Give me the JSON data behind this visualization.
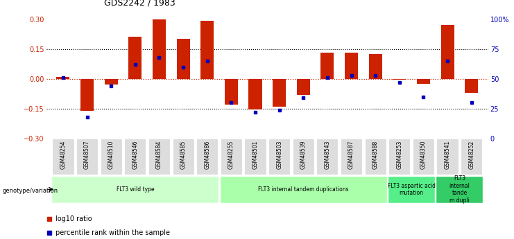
{
  "title": "GDS2242 / 1983",
  "samples": [
    "GSM48254",
    "GSM48507",
    "GSM48510",
    "GSM48546",
    "GSM48584",
    "GSM48585",
    "GSM48586",
    "GSM48255",
    "GSM48501",
    "GSM48503",
    "GSM48539",
    "GSM48543",
    "GSM48587",
    "GSM48588",
    "GSM48253",
    "GSM48350",
    "GSM48541",
    "GSM48252"
  ],
  "log10_ratio": [
    0.01,
    -0.16,
    -0.03,
    0.21,
    0.3,
    0.2,
    0.29,
    -0.13,
    -0.155,
    -0.14,
    -0.08,
    0.13,
    0.13,
    0.125,
    -0.005,
    -0.025,
    0.27,
    -0.07
  ],
  "percentile_rank": [
    51,
    18,
    44,
    62,
    68,
    60,
    65,
    30,
    22,
    24,
    34,
    51,
    53,
    53,
    47,
    35,
    65,
    30
  ],
  "bar_color": "#cc2200",
  "dot_color": "#0000bb",
  "groups": [
    {
      "label": "FLT3 wild type",
      "start": 0,
      "end": 6,
      "color": "#ccffcc"
    },
    {
      "label": "FLT3 internal tandem duplications",
      "start": 7,
      "end": 13,
      "color": "#aaffaa"
    },
    {
      "label": "FLT3 aspartic acid\nmutation",
      "start": 14,
      "end": 15,
      "color": "#55ee88"
    },
    {
      "label": "FLT3\ninternal\ntande\nm dupli",
      "start": 16,
      "end": 17,
      "color": "#33cc66"
    }
  ],
  "ylim": [
    -0.3,
    0.3
  ],
  "y2lim": [
    0,
    100
  ],
  "yticks_left": [
    -0.3,
    -0.15,
    0.0,
    0.15,
    0.3
  ],
  "yticks_right": [
    0,
    25,
    50,
    75,
    100
  ],
  "y2ticklabels": [
    "0",
    "25",
    "50",
    "75",
    "100%"
  ],
  "legend_ratio_label": "log10 ratio",
  "legend_pct_label": "percentile rank within the sample",
  "bar_width": 0.55,
  "n_samples": 18
}
